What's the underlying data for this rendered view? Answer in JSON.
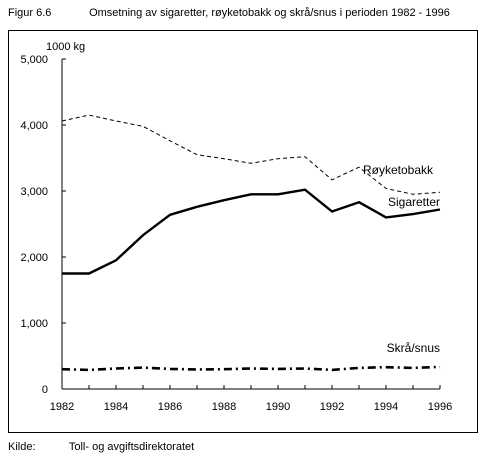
{
  "figure": {
    "number": "Figur 6.6",
    "title": "Omsetning av sigaretter, røyketobakk og skrå/snus i perioden 1982 - 1996"
  },
  "source": {
    "label": "Kilde:",
    "text": "Toll- og avgiftsdirektoratet"
  },
  "chart_data": {
    "type": "line",
    "title": "Omsetning av sigaretter, røyketobakk og skrå/snus i perioden 1982 - 1996",
    "ylabel": "1000 kg",
    "xlabel": "",
    "x": [
      1982,
      1983,
      1984,
      1985,
      1986,
      1987,
      1988,
      1989,
      1990,
      1991,
      1992,
      1993,
      1994,
      1995,
      1996
    ],
    "xlim": [
      1982,
      1996
    ],
    "ylim": [
      0,
      5000
    ],
    "x_ticks": [
      1982,
      1984,
      1986,
      1988,
      1990,
      1992,
      1994,
      1996
    ],
    "y_ticks": [
      0,
      1000,
      2000,
      3000,
      4000,
      5000
    ],
    "y_tick_labels": [
      "0",
      "1,000",
      "2,000",
      "3,000",
      "4,000",
      "5,000"
    ],
    "grid": false,
    "legend": "inline labels at right end of lines",
    "series": [
      {
        "name": "Røyketobakk",
        "style": "dashed-thin",
        "values": [
          4060,
          4150,
          4060,
          3980,
          3760,
          3550,
          3490,
          3420,
          3490,
          3520,
          3170,
          3360,
          3040,
          2950,
          2980
        ]
      },
      {
        "name": "Sigaretter",
        "style": "solid-thick",
        "values": [
          1750,
          1750,
          1950,
          2330,
          2640,
          2760,
          2860,
          2950,
          2950,
          3020,
          2690,
          2830,
          2600,
          2650,
          2720
        ]
      },
      {
        "name": "Skrå/snus",
        "style": "dash-dot-thick",
        "values": [
          300,
          290,
          310,
          325,
          305,
          295,
          300,
          310,
          305,
          310,
          290,
          320,
          330,
          320,
          335
        ]
      }
    ],
    "colors": {
      "lines": "#000000",
      "background": "#ffffff"
    }
  }
}
